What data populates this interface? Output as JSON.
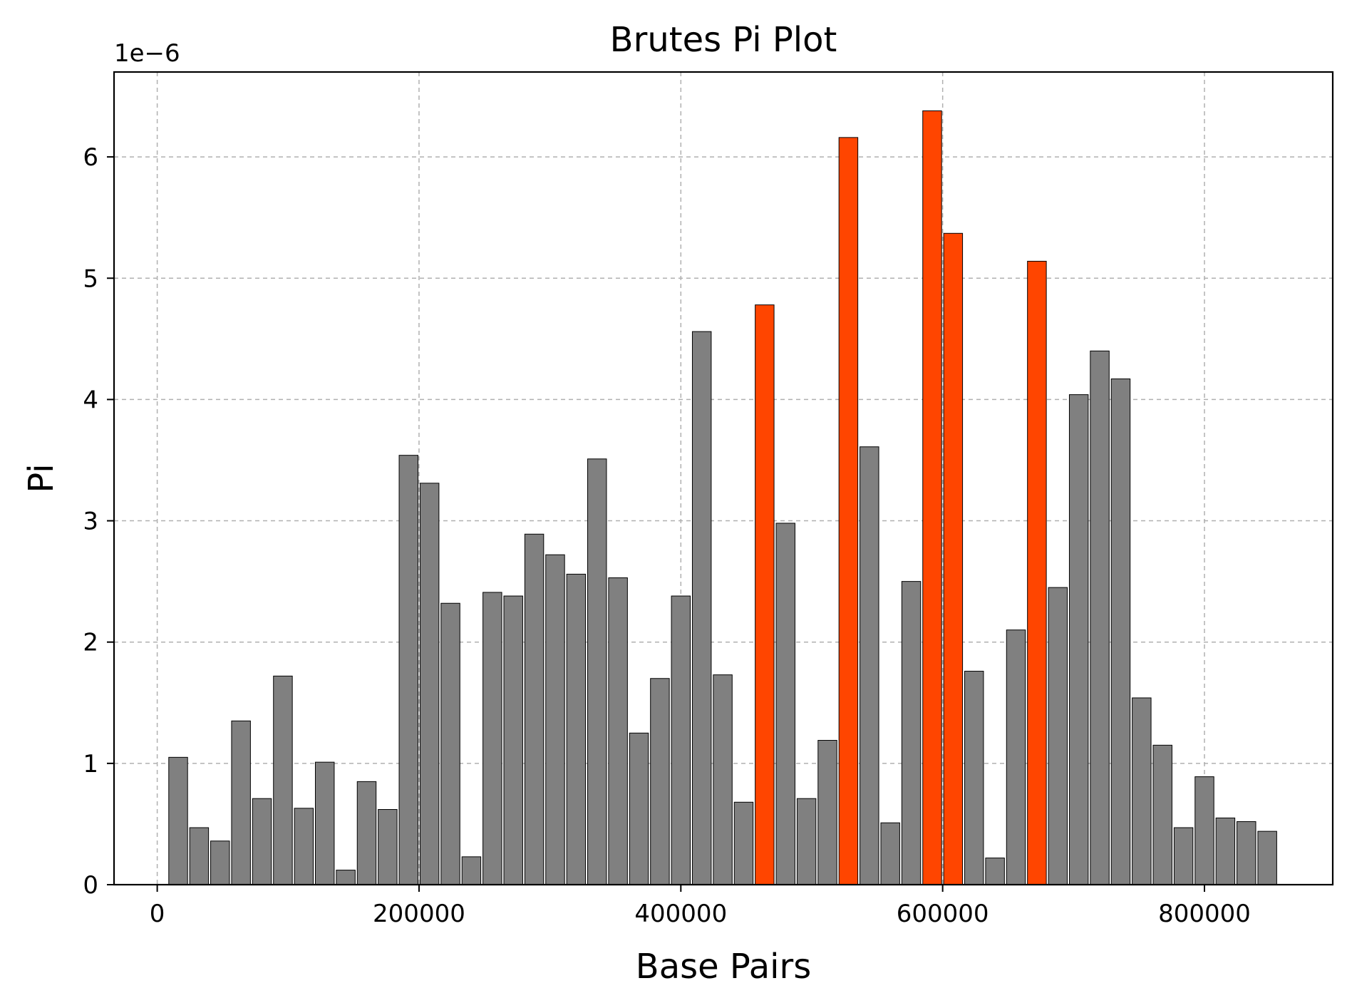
{
  "chart_data": {
    "type": "bar",
    "title": "Brutes Pi Plot",
    "xlabel": "Base Pairs",
    "ylabel": "Pi",
    "y_offset_label": "1e−6",
    "y_scale_factor": 1e-06,
    "xlim": [
      -33000,
      898000
    ],
    "ylim": [
      0,
      6.7
    ],
    "xticks": [
      0,
      200000,
      400000,
      600000,
      800000
    ],
    "xtick_labels": [
      "0",
      "200000",
      "400000",
      "600000",
      "800000"
    ],
    "yticks": [
      0,
      1,
      2,
      3,
      4,
      5,
      6
    ],
    "ytick_labels": [
      "0",
      "1",
      "2",
      "3",
      "4",
      "5",
      "6"
    ],
    "grid": true,
    "bar_width": 14400,
    "colors": {
      "default": "#808080",
      "highlight": "#ff4500"
    },
    "x": [
      16000,
      32000,
      48000,
      64000,
      80000,
      96000,
      112000,
      128000,
      144000,
      160000,
      176000,
      192000,
      208000,
      224000,
      240000,
      256000,
      272000,
      288000,
      304000,
      320000,
      336000,
      352000,
      368000,
      384000,
      400000,
      416000,
      432000,
      448000,
      464000,
      480000,
      496000,
      512000,
      528000,
      544000,
      560000,
      576000,
      592000,
      608000,
      624000,
      640000,
      656000,
      672000,
      688000,
      704000,
      720000,
      736000,
      752000,
      768000,
      784000,
      800000,
      816000,
      832000,
      848000
    ],
    "values": [
      1.05,
      0.47,
      0.36,
      1.35,
      0.71,
      1.72,
      0.63,
      1.01,
      0.12,
      0.85,
      0.62,
      3.54,
      3.31,
      2.32,
      0.23,
      2.41,
      2.38,
      2.89,
      2.72,
      2.56,
      3.51,
      2.53,
      1.25,
      1.7,
      2.38,
      4.56,
      1.73,
      0.68,
      4.78,
      2.98,
      0.71,
      1.19,
      6.16,
      3.61,
      0.51,
      2.5,
      6.38,
      5.37,
      1.76,
      0.22,
      2.1,
      5.14,
      2.45,
      4.04,
      4.4,
      4.17,
      1.54,
      1.15,
      0.47,
      0.89,
      0.55,
      0.52,
      0.44
    ],
    "highlighted": [
      false,
      false,
      false,
      false,
      false,
      false,
      false,
      false,
      false,
      false,
      false,
      false,
      false,
      false,
      false,
      false,
      false,
      false,
      false,
      false,
      false,
      false,
      false,
      false,
      false,
      false,
      false,
      false,
      true,
      false,
      false,
      false,
      true,
      false,
      false,
      false,
      true,
      true,
      false,
      false,
      false,
      true,
      false,
      false,
      false,
      false,
      false,
      false,
      false,
      false,
      false,
      false,
      false
    ]
  }
}
